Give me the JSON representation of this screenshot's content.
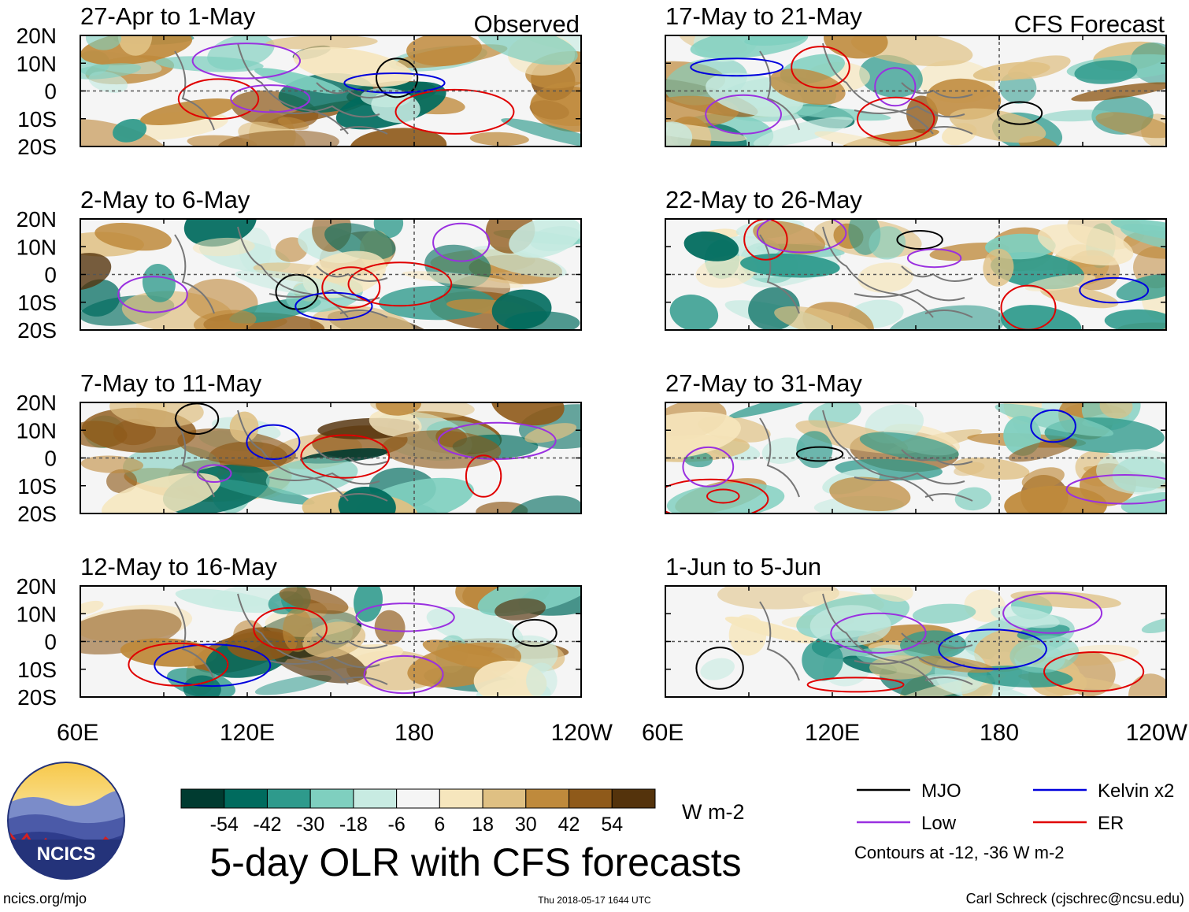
{
  "chart_data": {
    "type": "heatmap",
    "title": "5-day OLR with CFS forecasts",
    "observed_label": "Observed",
    "forecast_label": "CFS Forecast",
    "panels": [
      {
        "title": "27-Apr to 1-May",
        "kind": "observed"
      },
      {
        "title": "2-May to 6-May",
        "kind": "observed"
      },
      {
        "title": "7-May to 11-May",
        "kind": "observed"
      },
      {
        "title": "12-May to 16-May",
        "kind": "observed"
      },
      {
        "title": "17-May to 21-May",
        "kind": "forecast"
      },
      {
        "title": "22-May to 26-May",
        "kind": "forecast"
      },
      {
        "title": "27-May to 31-May",
        "kind": "forecast"
      },
      {
        "title": "1-Jun to 5-Jun",
        "kind": "forecast"
      }
    ],
    "y_ticks": [
      "20N",
      "10N",
      "0",
      "10S",
      "20S"
    ],
    "x_ticks": [
      "60E",
      "120E",
      "180",
      "120W"
    ],
    "x_range": [
      60,
      240
    ],
    "y_range": [
      -20,
      20
    ],
    "colorbar": {
      "labels": [
        "-54",
        "-42",
        "-30",
        "-18",
        "-6",
        "6",
        "18",
        "30",
        "42",
        "54"
      ],
      "colors": [
        "#003b30",
        "#006b5e",
        "#2e9a8c",
        "#7fcfbf",
        "#c8ebe2",
        "#f5f5f5",
        "#f6e6bd",
        "#dfc083",
        "#bf8a3c",
        "#8f5a1a",
        "#54330c"
      ],
      "unit": "W m-2"
    },
    "legend": [
      {
        "label": "MJO",
        "color": "#000000"
      },
      {
        "label": "Kelvin x2",
        "color": "#0000dd"
      },
      {
        "label": "Low",
        "color": "#9a30e0"
      },
      {
        "label": "ER",
        "color": "#e00000"
      }
    ],
    "contour_note": "Contours at -12, -36 W m-2"
  },
  "logo": {
    "text": "NCICS"
  },
  "footer": {
    "website": "ncics.org/mjo",
    "timestamp": "Thu 2018-05-17 1644 UTC",
    "author": "Carl Schreck (cjschrec@ncsu.edu)"
  }
}
